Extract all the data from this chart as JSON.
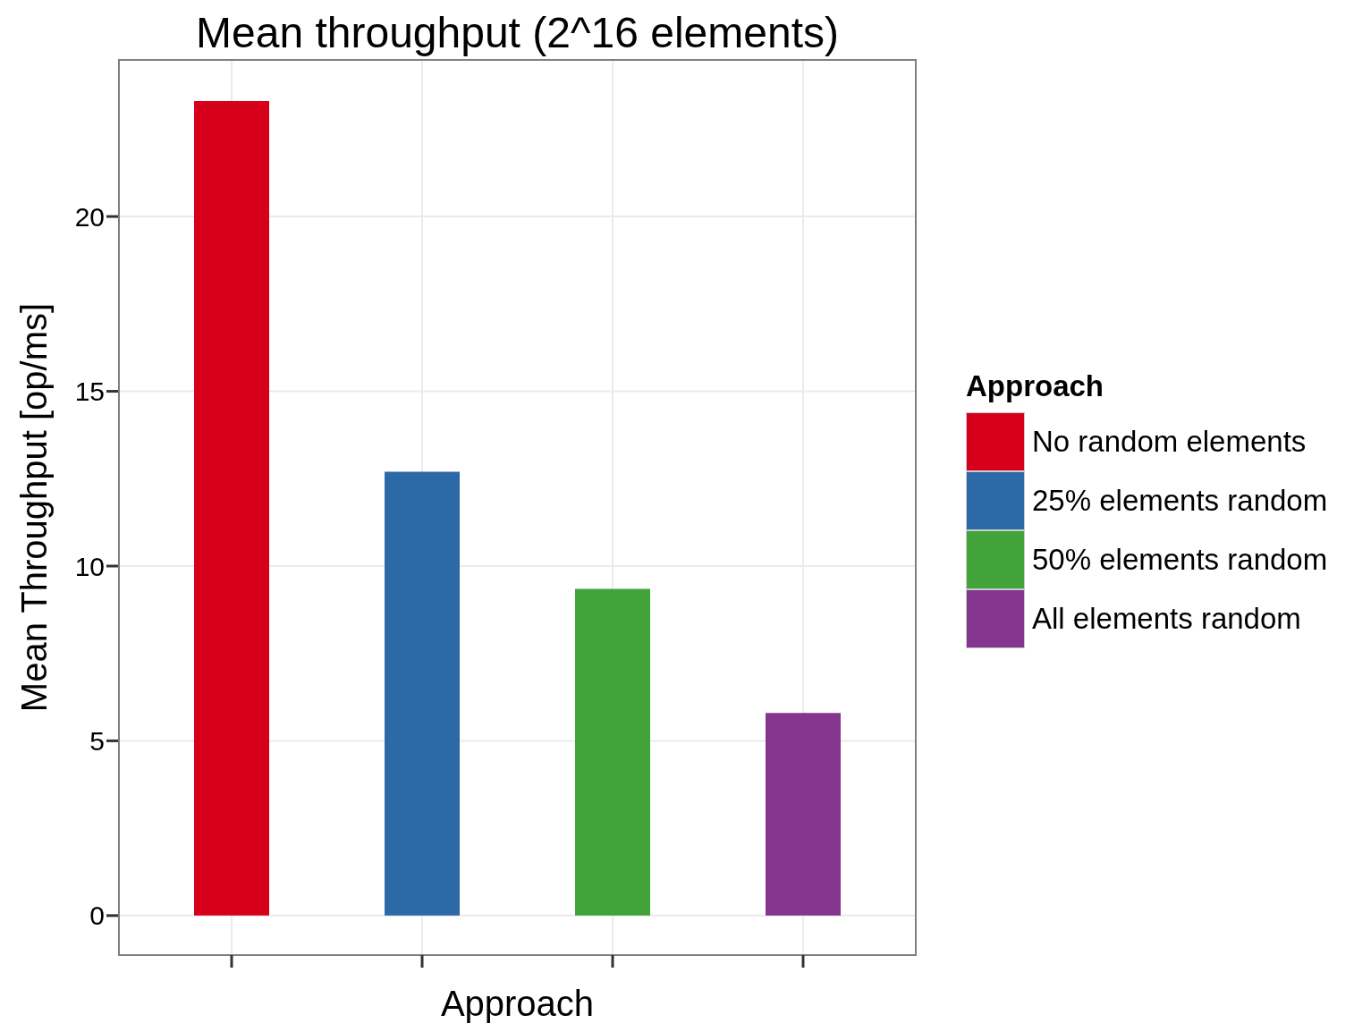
{
  "chart_data": {
    "type": "bar",
    "title": "Mean throughput (2^16 elements)",
    "xlabel": "Approach",
    "ylabel": "Mean Throughput [op/ms]",
    "legend_title": "Approach",
    "categories": [
      null
    ],
    "series": [
      {
        "name": "No random elements",
        "color": "#d7001b",
        "values": [
          23.3
        ]
      },
      {
        "name": "25% elements random",
        "color": "#2d69a7",
        "values": [
          12.7
        ]
      },
      {
        "name": "50% elements random",
        "color": "#41a339",
        "values": [
          9.35
        ]
      },
      {
        "name": "All elements random",
        "color": "#84358e",
        "values": [
          5.8
        ]
      }
    ],
    "ylim": [
      -1.13,
      24.48
    ],
    "yticks": [
      0,
      5,
      10,
      15,
      20
    ],
    "grid": true,
    "legend": "right",
    "tick_labels": "y"
  }
}
